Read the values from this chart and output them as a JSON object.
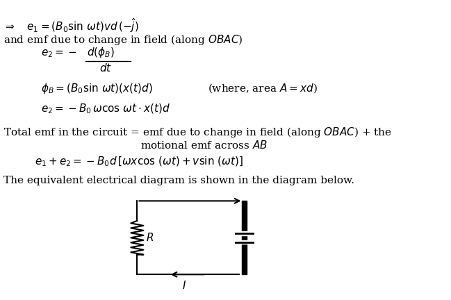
{
  "background_color": "#ffffff",
  "line1": "$\\Rightarrow \\quad e_1 = (B_0 \\sin\\, \\omega t)vd\\,(-\\hat{j})$",
  "line2": "and emf due to change in field (along $\\mathit{OBAC}$)",
  "line3_e2": "$e_2 = -$",
  "line3_num": "$d(\\phi_B)$",
  "line3_den": "$dt$",
  "line4_phi": "$\\phi_B = (B_0 \\sin\\, \\omega t)(x(t)d)$",
  "line4_where": "(where, area $A = xd$)",
  "line5": "$e_2 = -B_0\\, \\omega \\cos\\, \\omega t \\cdot x(t)d$",
  "line6a": "Total emf in the circuit = emf due to change in field (along $\\mathit{OBAC}$) + the",
  "line6b": "motional emf across $\\mathit{AB}$",
  "line7": "$e_1 + e_2 = -B_0 d\\,[\\omega x \\cos\\,(\\omega t) + v \\sin\\,(\\omega t)]$",
  "line8": "The equivalent electrical diagram is shown in the diagram below.",
  "fs_main": 11.0,
  "fs_math": 11.0
}
